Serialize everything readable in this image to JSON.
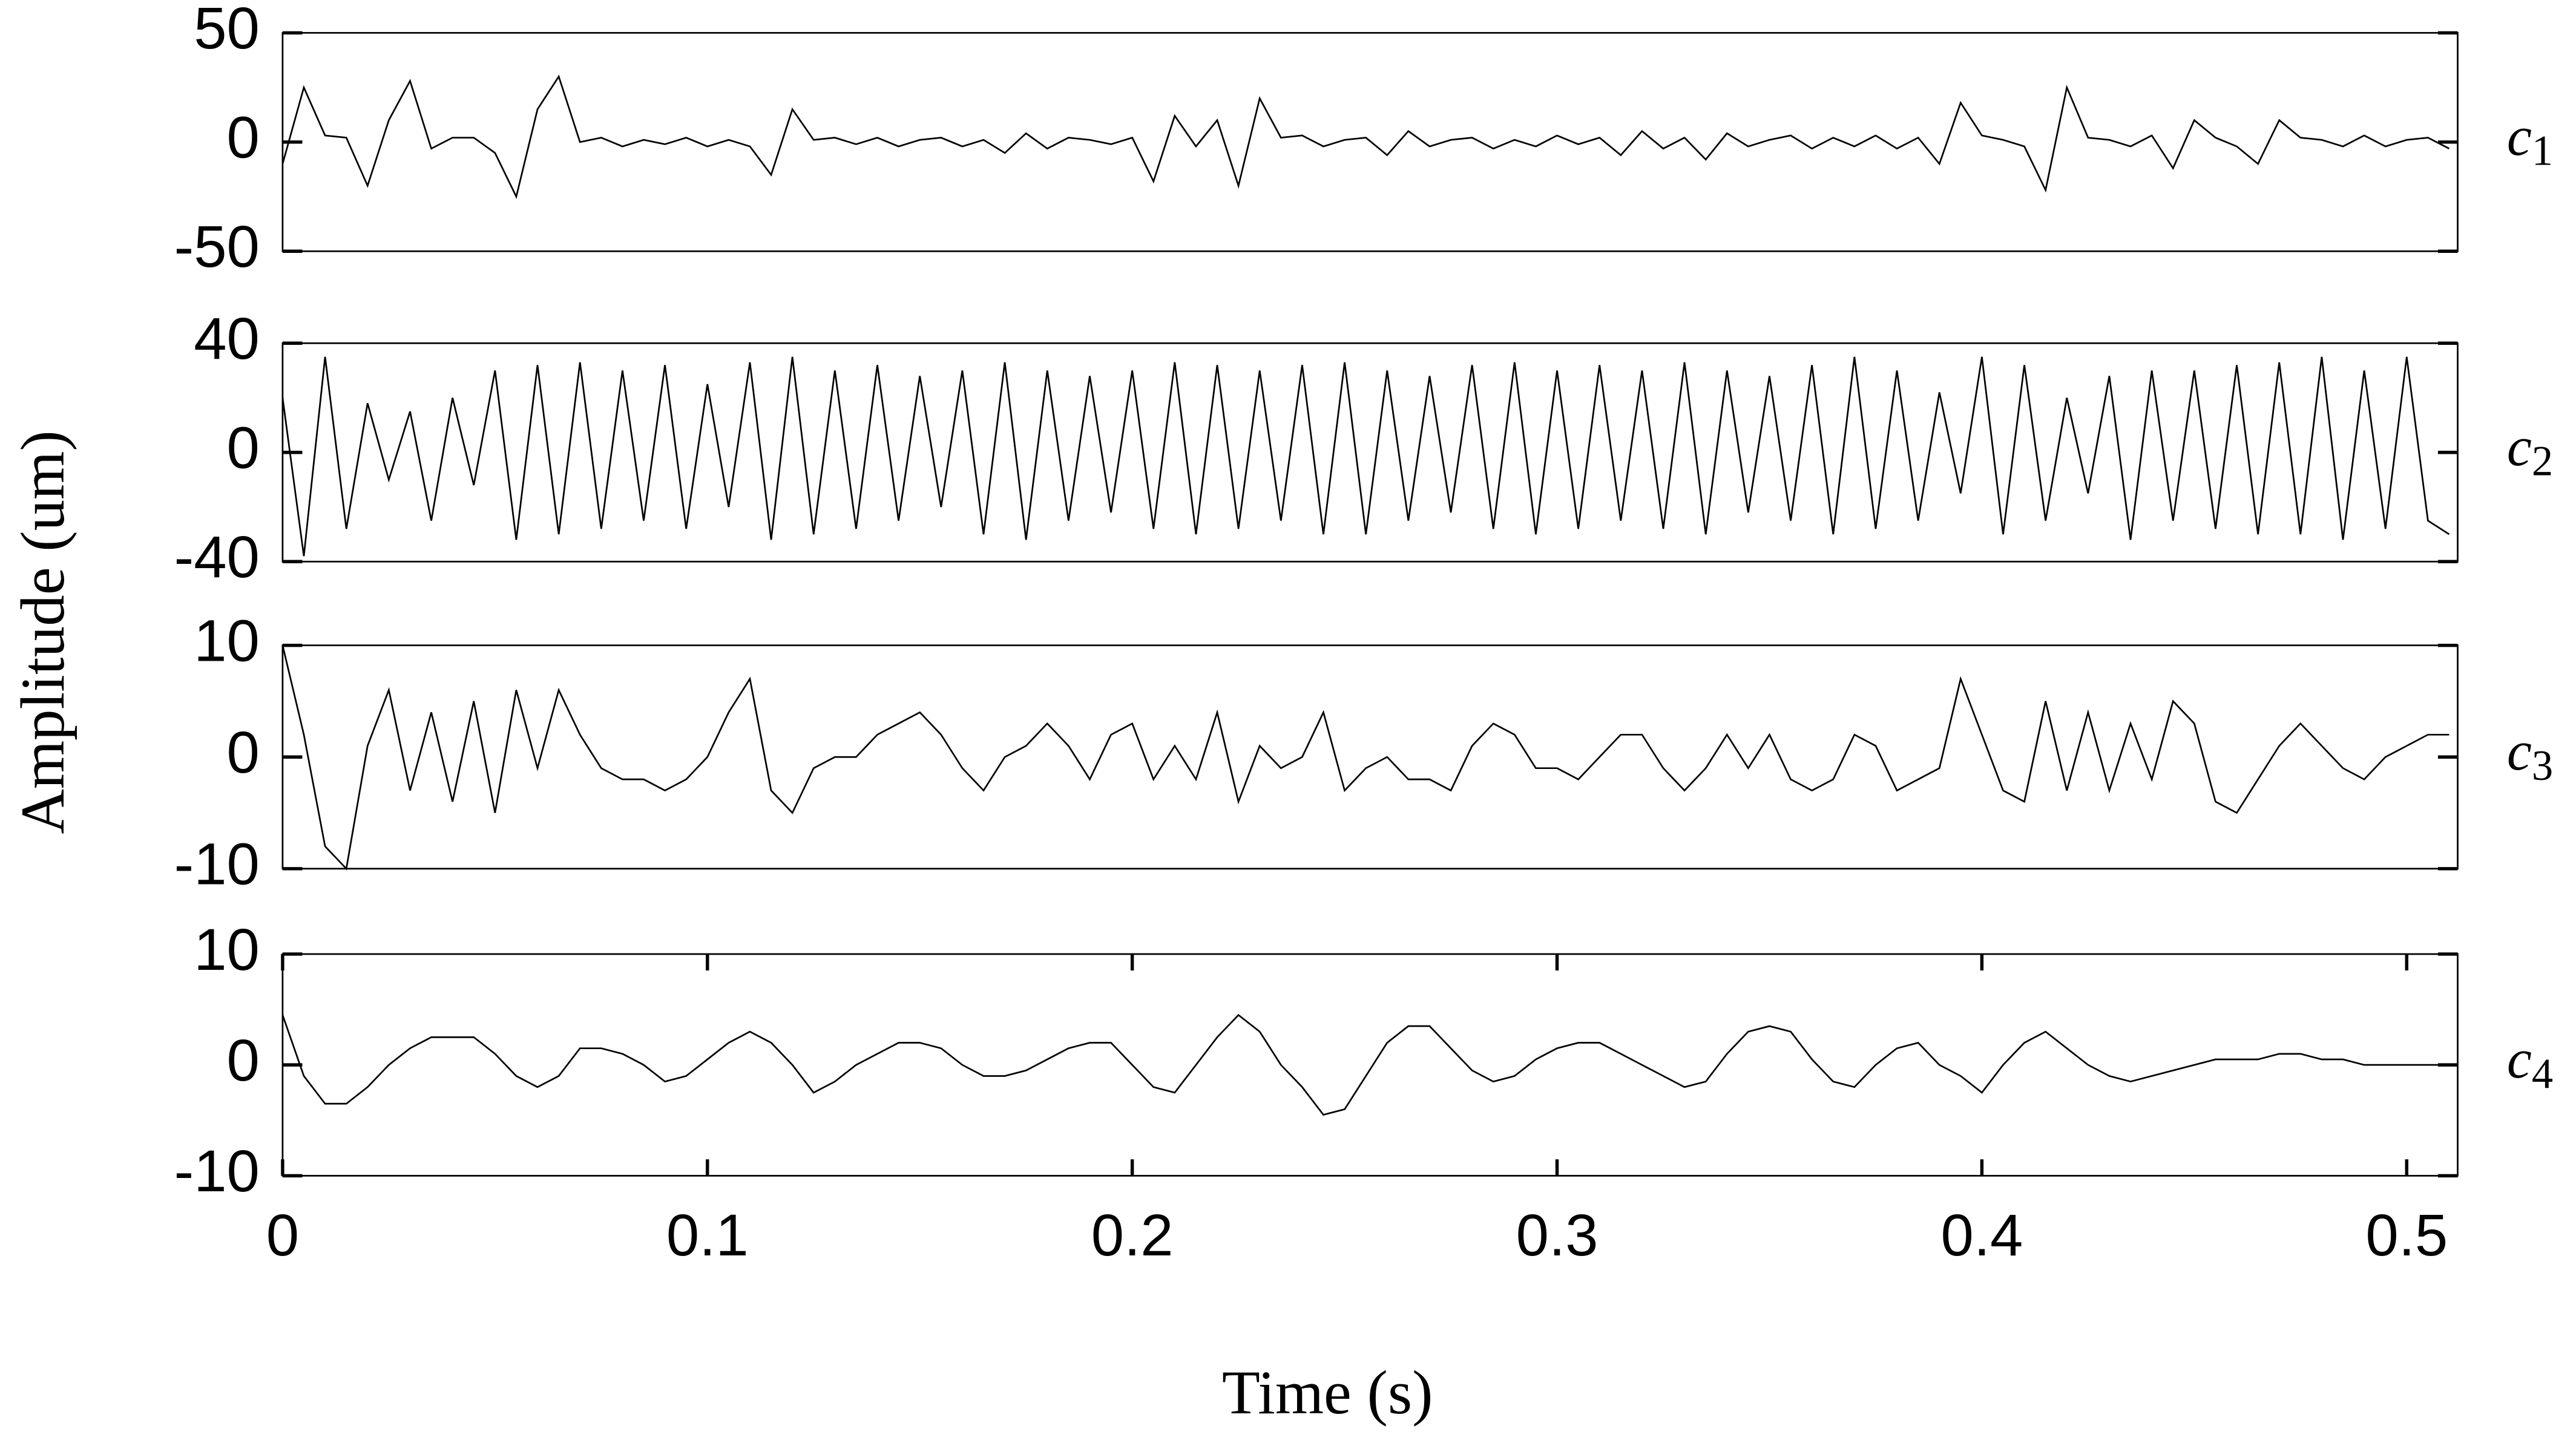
{
  "figure": {
    "ylabel": "Amplitude (um)",
    "xlabel": "Time (s)"
  },
  "chart_data": [
    {
      "type": "line",
      "label_main": "c",
      "label_sub": "1",
      "xlim": [
        0,
        0.512
      ],
      "ylim": [
        -50,
        50
      ],
      "yticks": [
        -50,
        0,
        50
      ],
      "color": "#000000",
      "x": [
        0,
        0.005,
        0.01,
        0.015,
        0.02,
        0.025,
        0.03,
        0.035,
        0.04,
        0.045,
        0.05,
        0.055,
        0.06,
        0.065,
        0.07,
        0.075,
        0.08,
        0.085,
        0.09,
        0.095,
        0.1,
        0.105,
        0.11,
        0.115,
        0.12,
        0.125,
        0.13,
        0.135,
        0.14,
        0.145,
        0.15,
        0.155,
        0.16,
        0.165,
        0.17,
        0.175,
        0.18,
        0.185,
        0.19,
        0.195,
        0.2,
        0.205,
        0.21,
        0.215,
        0.22,
        0.225,
        0.23,
        0.235,
        0.24,
        0.245,
        0.25,
        0.255,
        0.26,
        0.265,
        0.27,
        0.275,
        0.28,
        0.285,
        0.29,
        0.295,
        0.3,
        0.305,
        0.31,
        0.315,
        0.32,
        0.325,
        0.33,
        0.335,
        0.34,
        0.345,
        0.35,
        0.355,
        0.36,
        0.365,
        0.37,
        0.375,
        0.38,
        0.385,
        0.39,
        0.395,
        0.4,
        0.405,
        0.41,
        0.415,
        0.42,
        0.425,
        0.43,
        0.435,
        0.44,
        0.445,
        0.45,
        0.455,
        0.46,
        0.465,
        0.47,
        0.475,
        0.48,
        0.485,
        0.49,
        0.495,
        0.5,
        0.505,
        0.51
      ],
      "values": [
        -10,
        25,
        3,
        2,
        -20,
        10,
        28,
        -3,
        2,
        2,
        -5,
        -25,
        15,
        30,
        0,
        2,
        -2,
        1,
        -1,
        2,
        -2,
        1,
        -2,
        -15,
        15,
        1,
        2,
        -1,
        2,
        -2,
        1,
        2,
        -2,
        1,
        -5,
        4,
        -3,
        2,
        1,
        -1,
        2,
        -18,
        12,
        -2,
        10,
        -20,
        20,
        2,
        3,
        -2,
        1,
        2,
        -6,
        5,
        -2,
        1,
        2,
        -3,
        1,
        -2,
        3,
        -1,
        2,
        -6,
        5,
        -3,
        2,
        -8,
        4,
        -2,
        1,
        3,
        -3,
        2,
        -2,
        3,
        -3,
        2,
        -10,
        18,
        3,
        1,
        -2,
        -22,
        25,
        2,
        1,
        -2,
        3,
        -12,
        10,
        2,
        -2,
        -10,
        10,
        2,
        1,
        -2,
        3,
        -2,
        1,
        2,
        -3
      ]
    },
    {
      "type": "line",
      "label_main": "c",
      "label_sub": "2",
      "xlim": [
        0,
        0.512
      ],
      "ylim": [
        -40,
        40
      ],
      "yticks": [
        -40,
        0,
        40
      ],
      "color": "#000000",
      "x": [
        0,
        0.005,
        0.01,
        0.015,
        0.02,
        0.025,
        0.03,
        0.035,
        0.04,
        0.045,
        0.05,
        0.055,
        0.06,
        0.065,
        0.07,
        0.075,
        0.08,
        0.085,
        0.09,
        0.095,
        0.1,
        0.105,
        0.11,
        0.115,
        0.12,
        0.125,
        0.13,
        0.135,
        0.14,
        0.145,
        0.15,
        0.155,
        0.16,
        0.165,
        0.17,
        0.175,
        0.18,
        0.185,
        0.19,
        0.195,
        0.2,
        0.205,
        0.21,
        0.215,
        0.22,
        0.225,
        0.23,
        0.235,
        0.24,
        0.245,
        0.25,
        0.255,
        0.26,
        0.265,
        0.27,
        0.275,
        0.28,
        0.285,
        0.29,
        0.295,
        0.3,
        0.305,
        0.31,
        0.315,
        0.32,
        0.325,
        0.33,
        0.335,
        0.34,
        0.345,
        0.35,
        0.355,
        0.36,
        0.365,
        0.37,
        0.375,
        0.38,
        0.385,
        0.39,
        0.395,
        0.4,
        0.405,
        0.41,
        0.415,
        0.42,
        0.425,
        0.43,
        0.435,
        0.44,
        0.445,
        0.45,
        0.455,
        0.46,
        0.465,
        0.47,
        0.475,
        0.48,
        0.485,
        0.49,
        0.495,
        0.5,
        0.505,
        0.51
      ],
      "values": [
        20,
        -38,
        35,
        -28,
        18,
        -10,
        15,
        -25,
        20,
        -12,
        30,
        -32,
        32,
        -30,
        33,
        -28,
        30,
        -25,
        32,
        -28,
        25,
        -20,
        33,
        -32,
        35,
        -30,
        30,
        -28,
        32,
        -25,
        28,
        -20,
        30,
        -30,
        33,
        -32,
        30,
        -25,
        28,
        -22,
        30,
        -28,
        33,
        -30,
        32,
        -28,
        30,
        -25,
        32,
        -30,
        33,
        -30,
        30,
        -25,
        28,
        -22,
        32,
        -28,
        33,
        -30,
        30,
        -28,
        32,
        -25,
        30,
        -28,
        33,
        -30,
        30,
        -22,
        28,
        -25,
        32,
        -30,
        35,
        -28,
        30,
        -25,
        22,
        -15,
        35,
        -30,
        32,
        -25,
        20,
        -15,
        28,
        -32,
        30,
        -25,
        30,
        -28,
        32,
        -30,
        33,
        -30,
        35,
        -32,
        30,
        -28,
        35,
        -25,
        -30
      ]
    },
    {
      "type": "line",
      "label_main": "c",
      "label_sub": "3",
      "xlim": [
        0,
        0.512
      ],
      "ylim": [
        -10,
        10
      ],
      "yticks": [
        -10,
        0,
        10
      ],
      "color": "#000000",
      "x": [
        0,
        0.005,
        0.01,
        0.015,
        0.02,
        0.025,
        0.03,
        0.035,
        0.04,
        0.045,
        0.05,
        0.055,
        0.06,
        0.065,
        0.07,
        0.075,
        0.08,
        0.085,
        0.09,
        0.095,
        0.1,
        0.105,
        0.11,
        0.115,
        0.12,
        0.125,
        0.13,
        0.135,
        0.14,
        0.145,
        0.15,
        0.155,
        0.16,
        0.165,
        0.17,
        0.175,
        0.18,
        0.185,
        0.19,
        0.195,
        0.2,
        0.205,
        0.21,
        0.215,
        0.22,
        0.225,
        0.23,
        0.235,
        0.24,
        0.245,
        0.25,
        0.255,
        0.26,
        0.265,
        0.27,
        0.275,
        0.28,
        0.285,
        0.29,
        0.295,
        0.3,
        0.305,
        0.31,
        0.315,
        0.32,
        0.325,
        0.33,
        0.335,
        0.34,
        0.345,
        0.35,
        0.355,
        0.36,
        0.365,
        0.37,
        0.375,
        0.38,
        0.385,
        0.39,
        0.395,
        0.4,
        0.405,
        0.41,
        0.415,
        0.42,
        0.425,
        0.43,
        0.435,
        0.44,
        0.445,
        0.45,
        0.455,
        0.46,
        0.465,
        0.47,
        0.475,
        0.48,
        0.485,
        0.49,
        0.495,
        0.5,
        0.505,
        0.51
      ],
      "values": [
        10,
        2,
        -8,
        -10,
        1,
        6,
        -3,
        4,
        -4,
        5,
        -5,
        6,
        -1,
        6,
        2,
        -1,
        -2,
        -2,
        -3,
        -2,
        0,
        4,
        7,
        -3,
        -5,
        -1,
        0,
        0,
        2,
        3,
        4,
        2,
        -1,
        -3,
        0,
        1,
        3,
        1,
        -2,
        2,
        3,
        -2,
        1,
        -2,
        4,
        -4,
        1,
        -1,
        0,
        4,
        -3,
        -1,
        0,
        -2,
        -2,
        -3,
        1,
        3,
        2,
        -1,
        -1,
        -2,
        0,
        2,
        2,
        -1,
        -3,
        -1,
        2,
        -1,
        2,
        -2,
        -3,
        -2,
        2,
        1,
        -3,
        -2,
        -1,
        7,
        2,
        -3,
        -4,
        5,
        -3,
        4,
        -3,
        3,
        -2,
        5,
        3,
        -4,
        -5,
        -2,
        1,
        3,
        1,
        -1,
        -2,
        0,
        1,
        2,
        2
      ]
    },
    {
      "type": "line",
      "label_main": "c",
      "label_sub": "4",
      "xlim": [
        0,
        0.512
      ],
      "ylim": [
        -10,
        10
      ],
      "yticks": [
        -10,
        0,
        10
      ],
      "xticks": [
        0,
        0.1,
        0.2,
        0.3,
        0.4,
        0.5
      ],
      "color": "#000000",
      "x": [
        0,
        0.005,
        0.01,
        0.015,
        0.02,
        0.025,
        0.03,
        0.035,
        0.04,
        0.045,
        0.05,
        0.055,
        0.06,
        0.065,
        0.07,
        0.075,
        0.08,
        0.085,
        0.09,
        0.095,
        0.1,
        0.105,
        0.11,
        0.115,
        0.12,
        0.125,
        0.13,
        0.135,
        0.14,
        0.145,
        0.15,
        0.155,
        0.16,
        0.165,
        0.17,
        0.175,
        0.18,
        0.185,
        0.19,
        0.195,
        0.2,
        0.205,
        0.21,
        0.215,
        0.22,
        0.225,
        0.23,
        0.235,
        0.24,
        0.245,
        0.25,
        0.255,
        0.26,
        0.265,
        0.27,
        0.275,
        0.28,
        0.285,
        0.29,
        0.295,
        0.3,
        0.305,
        0.31,
        0.315,
        0.32,
        0.325,
        0.33,
        0.335,
        0.34,
        0.345,
        0.35,
        0.355,
        0.36,
        0.365,
        0.37,
        0.375,
        0.38,
        0.385,
        0.39,
        0.395,
        0.4,
        0.405,
        0.41,
        0.415,
        0.42,
        0.425,
        0.43,
        0.435,
        0.44,
        0.445,
        0.45,
        0.455,
        0.46,
        0.465,
        0.47,
        0.475,
        0.48,
        0.485,
        0.49,
        0.495,
        0.5,
        0.505,
        0.51
      ],
      "values": [
        4.5,
        -1,
        -3.5,
        -3.5,
        -2,
        0,
        1.5,
        2.5,
        2.5,
        2.5,
        1,
        -1,
        -2,
        -1,
        1.5,
        1.5,
        1,
        0,
        -1.5,
        -1,
        0.5,
        2,
        3,
        2,
        0,
        -2.5,
        -1.5,
        0,
        1,
        2,
        2,
        1.5,
        0,
        -1,
        -1,
        -0.5,
        0.5,
        1.5,
        2,
        2,
        0,
        -2,
        -2.5,
        0,
        2.5,
        4.5,
        3,
        0,
        -2,
        -4.5,
        -4,
        -1,
        2,
        3.5,
        3.5,
        1.5,
        -0.5,
        -1.5,
        -1,
        0.5,
        1.5,
        2,
        2,
        1,
        0,
        -1,
        -2,
        -1.5,
        1,
        3,
        3.5,
        3,
        0.5,
        -1.5,
        -2,
        0,
        1.5,
        2,
        0,
        -1,
        -2.5,
        0,
        2,
        3,
        1.5,
        0,
        -1,
        -1.5,
        -1,
        -0.5,
        0,
        0.5,
        0.5,
        0.5,
        1,
        1,
        0.5,
        0.5,
        0,
        0,
        0,
        0,
        0
      ]
    }
  ]
}
